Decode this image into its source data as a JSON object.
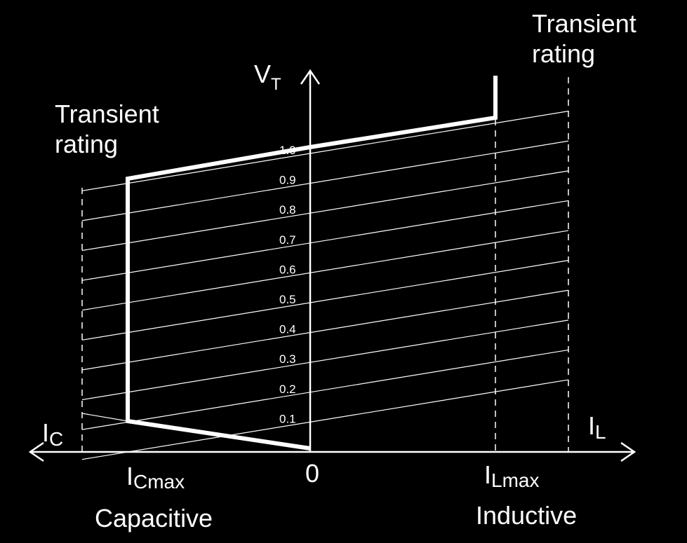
{
  "axes": {
    "y_label_main": "V",
    "y_label_sub": "T",
    "x_left_main": "I",
    "x_left_sub": "C",
    "x_right_main": "I",
    "x_right_sub": "L",
    "origin": "0"
  },
  "points": {
    "capacitive_max_main": "I",
    "capacitive_max_sub": "Cmax",
    "inductive_max_main": "I",
    "inductive_max_sub": "Lmax"
  },
  "regions": {
    "capacitive": "Capacitive",
    "inductive": "Inductive"
  },
  "annotations": {
    "transient_left_line1": "Transient",
    "transient_left_line2": "rating",
    "transient_right_line1": "Transient",
    "transient_right_line2": "rating"
  },
  "voltage_levels": [
    "0.1",
    "0.2",
    "0.3",
    "0.4",
    "0.5",
    "0.6",
    "0.7",
    "0.8",
    "0.9",
    "1.0"
  ],
  "colors": {
    "background": "#000000",
    "foreground": "#ffffff"
  }
}
